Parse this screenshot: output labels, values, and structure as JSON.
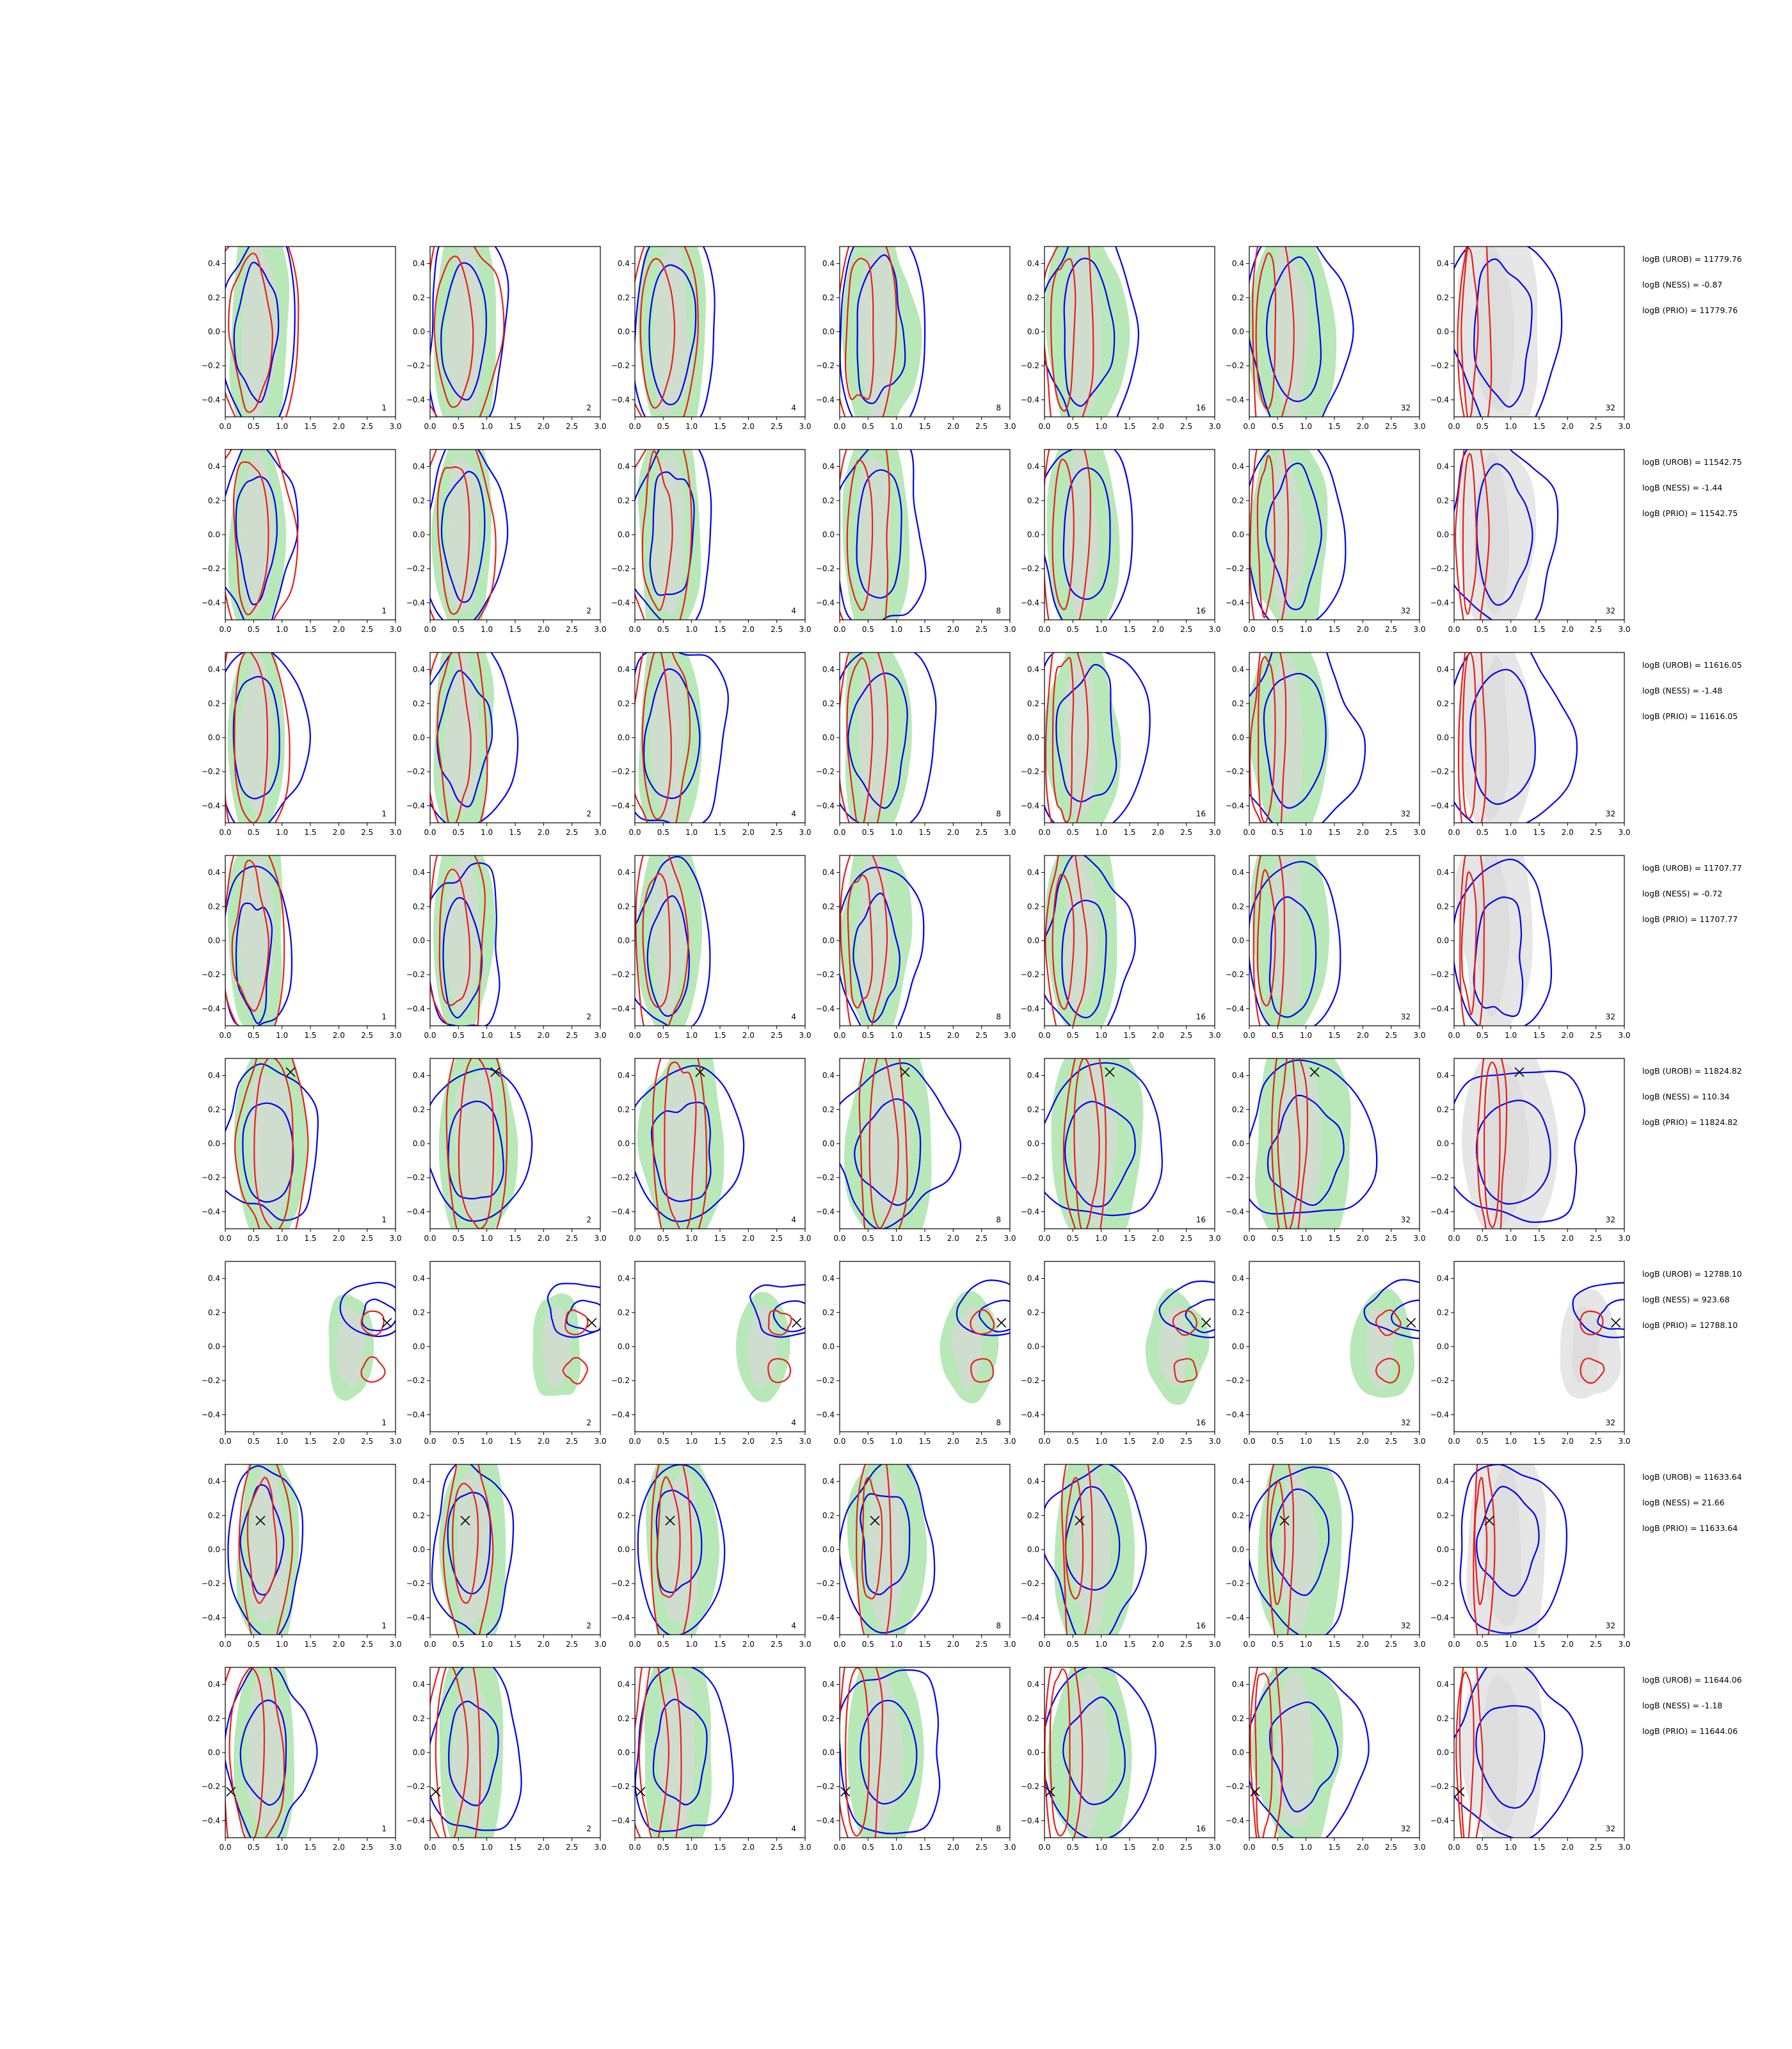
{
  "colors": {
    "green_fill": "#b8e8b8",
    "grey_fill": "#d8d8d8",
    "light_grey_fill": "#e6e6e6",
    "blue_contour": "#0000ee",
    "red_contour": "#e8201a",
    "marker": "#000000"
  },
  "chart_data": {
    "type": "contour-grid",
    "rows": 8,
    "columns": 7,
    "x_ticks": [
      "0.0",
      "0.5",
      "1.0",
      "1.5",
      "2.0",
      "2.5",
      "3.0"
    ],
    "y_ticks": [
      "0.4",
      "0.2",
      "0.0",
      "−0.2",
      "−0.4"
    ],
    "xlim": [
      0.0,
      3.0
    ],
    "ylim": [
      -0.5,
      0.5
    ],
    "panel_labels": [
      "1",
      "2",
      "4",
      "8",
      "16",
      "32",
      "32"
    ],
    "last_column_shading": "grey",
    "row_annotations": [
      {
        "lines": [
          "logB (UROB) = 11779.76",
          "logB (NESS) = -0.87",
          "logB (PRIO) = 11779.76"
        ],
        "marker": null
      },
      {
        "lines": [
          "logB (UROB) = 11542.75",
          "logB (NESS) = -1.44",
          "logB (PRIO) = 11542.75"
        ],
        "marker": null
      },
      {
        "lines": [
          "logB (UROB) = 11616.05",
          "logB (NESS) = -1.48",
          "logB (PRIO) = 11616.05"
        ],
        "marker": null
      },
      {
        "lines": [
          "logB (UROB) = 11707.77",
          "logB (NESS) = -0.72",
          "logB (PRIO) = 11707.77"
        ],
        "marker": null
      },
      {
        "lines": [
          "logB (UROB) = 11824.82",
          "logB (NESS) = 110.34",
          "logB (PRIO) = 11824.82"
        ],
        "marker": [
          1.15,
          0.42
        ]
      },
      {
        "lines": [
          "logB (UROB) = 12788.10",
          "logB (NESS) = 923.68",
          "logB (PRIO) = 12788.10"
        ],
        "marker": [
          2.85,
          0.14
        ]
      },
      {
        "lines": [
          "logB (UROB) = 11633.64",
          "logB (NESS) = 21.66",
          "logB (PRIO) = 11633.64"
        ],
        "marker": [
          0.62,
          0.17
        ]
      },
      {
        "lines": [
          "logB (UROB) = 11644.06",
          "logB (NESS) = -1.18",
          "logB (PRIO) = 11644.06"
        ],
        "marker": [
          0.1,
          -0.23
        ]
      }
    ]
  }
}
